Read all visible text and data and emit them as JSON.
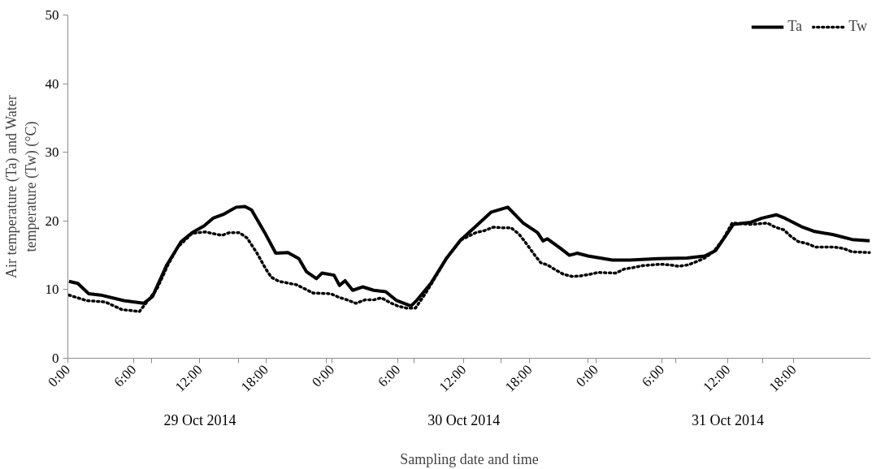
{
  "chart_data": {
    "type": "line",
    "xlabel": "Sampling date and time",
    "ylabel": "Air temperature (Ta) and Water\ntemperature (Tw) (°C)",
    "annotations": [
      "29 Oct 2014",
      "30 Oct 2014",
      "31 Oct 2014"
    ],
    "xlim": [
      "2014-10-29T00:00",
      "2014-11-01T01:00"
    ],
    "xticks": [
      {
        "value": "2014-10-29T00:00",
        "label": "0:00"
      },
      {
        "value": "2014-10-29T06:00",
        "label": "6:00"
      },
      {
        "value": "2014-10-29T12:00",
        "label": "12:00"
      },
      {
        "value": "2014-10-29T18:00",
        "label": "18:00"
      },
      {
        "value": "2014-10-30T00:00",
        "label": "0:00"
      },
      {
        "value": "2014-10-30T06:00",
        "label": "6:00"
      },
      {
        "value": "2014-10-30T12:00",
        "label": "12:00"
      },
      {
        "value": "2014-10-30T18:00",
        "label": "18:00"
      },
      {
        "value": "2014-10-31T00:00",
        "label": "0:00"
      },
      {
        "value": "2014-10-31T06:00",
        "label": "6:00"
      },
      {
        "value": "2014-10-31T12:00",
        "label": "12:00"
      },
      {
        "value": "2014-10-31T18:00",
        "label": "18:00"
      },
      {
        "value": "2014-10-29T07:36",
        "label": null
      },
      {
        "value": "2014-10-29T15:30",
        "label": null
      },
      {
        "value": "2014-10-29T23:30",
        "label": null
      },
      {
        "value": "2014-10-30T07:30",
        "label": null
      },
      {
        "value": "2014-10-30T15:24",
        "label": null
      },
      {
        "value": "2014-10-30T23:18",
        "label": null
      },
      {
        "value": "2014-10-31T07:18",
        "label": null
      },
      {
        "value": "2014-10-31T15:12",
        "label": null
      }
    ],
    "ylim": [
      0,
      50
    ],
    "yticks": [
      0,
      10,
      20,
      30,
      40,
      50
    ],
    "grid": false,
    "legend": "top right",
    "series": [
      {
        "name": "Ta",
        "color": "#000000",
        "line_style": "solid",
        "x": [
          "2014-10-29T00:06",
          "2014-10-29T00:54",
          "2014-10-29T01:54",
          "2014-10-29T03:00",
          "2014-10-29T05:06",
          "2014-10-29T06:54",
          "2014-10-29T07:42",
          "2014-10-29T09:00",
          "2014-10-29T10:18",
          "2014-10-29T11:18",
          "2014-10-29T12:24",
          "2014-10-29T13:12",
          "2014-10-29T14:12",
          "2014-10-29T15:18",
          "2014-10-29T16:06",
          "2014-10-29T16:42",
          "2014-10-29T17:54",
          "2014-10-29T18:54",
          "2014-10-29T20:00",
          "2014-10-29T21:00",
          "2014-10-29T21:42",
          "2014-10-29T22:36",
          "2014-10-29T23:06",
          "2014-10-30T00:12",
          "2014-10-30T00:42",
          "2014-10-30T01:12",
          "2014-10-30T01:54",
          "2014-10-30T02:48",
          "2014-10-30T03:48",
          "2014-10-30T04:54",
          "2014-10-30T05:54",
          "2014-10-30T07:12",
          "2014-10-30T07:42",
          "2014-10-30T09:00",
          "2014-10-30T10:24",
          "2014-10-30T11:42",
          "2014-10-30T13:00",
          "2014-10-30T14:30",
          "2014-10-30T16:00",
          "2014-10-30T17:24",
          "2014-10-30T18:42",
          "2014-10-30T19:12",
          "2014-10-30T19:36",
          "2014-10-30T20:48",
          "2014-10-30T21:36",
          "2014-10-30T22:18",
          "2014-10-30T23:18",
          "2014-10-31T01:30",
          "2014-10-31T03:06",
          "2014-10-31T05:42",
          "2014-10-31T08:18",
          "2014-10-31T09:54",
          "2014-10-31T10:54",
          "2014-10-31T11:42",
          "2014-10-31T12:30",
          "2014-10-31T14:06",
          "2014-10-31T15:06",
          "2014-10-31T16:24",
          "2014-10-31T17:12",
          "2014-10-31T18:48",
          "2014-10-31T19:48",
          "2014-10-31T21:36",
          "2014-10-31T23:18",
          "2014-11-01T00:54"
        ],
        "values": [
          11.2,
          10.9,
          9.4,
          9.2,
          8.4,
          8.0,
          9.0,
          13.6,
          17.0,
          18.3,
          19.3,
          20.4,
          21.0,
          22.0,
          22.1,
          21.6,
          18.3,
          15.3,
          15.4,
          14.5,
          12.6,
          11.6,
          12.4,
          12.1,
          10.6,
          11.3,
          9.9,
          10.4,
          9.9,
          9.7,
          8.4,
          7.6,
          8.4,
          10.9,
          14.5,
          17.2,
          19.1,
          21.3,
          22.0,
          19.7,
          18.3,
          17.1,
          17.4,
          16.0,
          15.0,
          15.3,
          14.9,
          14.3,
          14.3,
          14.5,
          14.6,
          14.9,
          15.7,
          17.6,
          19.5,
          19.8,
          20.4,
          20.9,
          20.4,
          19.1,
          18.5,
          18.0,
          17.3,
          17.1
        ]
      },
      {
        "name": "Tw",
        "color": "#000000",
        "line_style": "dotted",
        "x": [
          "2014-10-29T00:06",
          "2014-10-29T01:42",
          "2014-10-29T03:24",
          "2014-10-29T04:54",
          "2014-10-29T06:30",
          "2014-10-29T07:00",
          "2014-10-29T08:06",
          "2014-10-29T09:06",
          "2014-10-29T10:00",
          "2014-10-29T11:18",
          "2014-10-29T12:30",
          "2014-10-29T14:00",
          "2014-10-29T14:42",
          "2014-10-29T15:36",
          "2014-10-29T16:18",
          "2014-10-29T17:12",
          "2014-10-29T18:00",
          "2014-10-29T18:30",
          "2014-10-29T19:12",
          "2014-10-29T20:48",
          "2014-10-29T22:18",
          "2014-10-29T23:54",
          "2014-10-30T00:36",
          "2014-10-30T01:24",
          "2014-10-30T02:12",
          "2014-10-30T03:00",
          "2014-10-30T03:48",
          "2014-10-30T04:30",
          "2014-10-30T05:18",
          "2014-10-30T06:00",
          "2014-10-30T06:48",
          "2014-10-30T07:36",
          "2014-10-30T08:30",
          "2014-10-30T09:18",
          "2014-10-30T10:24",
          "2014-10-30T11:42",
          "2014-10-30T13:06",
          "2014-10-30T13:54",
          "2014-10-30T14:42",
          "2014-10-30T15:30",
          "2014-10-30T16:18",
          "2014-10-30T17:00",
          "2014-10-30T17:30",
          "2014-10-30T18:00",
          "2014-10-30T18:30",
          "2014-10-30T19:00",
          "2014-10-30T19:36",
          "2014-10-30T20:18",
          "2014-10-30T21:06",
          "2014-10-30T21:54",
          "2014-10-30T22:36",
          "2014-10-30T23:24",
          "2014-10-31T00:12",
          "2014-10-31T01:48",
          "2014-10-31T02:36",
          "2014-10-31T03:24",
          "2014-10-31T04:18",
          "2014-10-31T05:54",
          "2014-10-31T06:42",
          "2014-10-31T07:30",
          "2014-10-31T08:24",
          "2014-10-31T09:12",
          "2014-10-31T09:54",
          "2014-10-31T10:42",
          "2014-10-31T11:36",
          "2014-10-31T12:24",
          "2014-10-31T14:06",
          "2014-10-31T15:36",
          "2014-10-31T16:18",
          "2014-10-31T17:06",
          "2014-10-31T17:42",
          "2014-10-31T18:24",
          "2014-10-31T19:12",
          "2014-10-31T20:00",
          "2014-10-31T21:36",
          "2014-10-31T22:30",
          "2014-10-31T23:18",
          "2014-11-01T00:54"
        ],
        "values": [
          9.2,
          8.4,
          8.2,
          7.1,
          6.8,
          7.8,
          10.1,
          13.6,
          16.2,
          18.2,
          18.4,
          17.9,
          18.3,
          18.3,
          17.5,
          15.3,
          13.0,
          11.8,
          11.2,
          10.7,
          9.5,
          9.4,
          8.9,
          8.5,
          8.0,
          8.5,
          8.5,
          8.8,
          8.1,
          7.6,
          7.3,
          7.3,
          9.4,
          11.5,
          14.5,
          17.2,
          18.3,
          18.6,
          19.1,
          19.0,
          19.0,
          18.1,
          17.1,
          16.0,
          14.9,
          13.9,
          13.6,
          12.9,
          12.2,
          11.9,
          12.0,
          12.2,
          12.5,
          12.4,
          13.0,
          13.2,
          13.5,
          13.7,
          13.6,
          13.4,
          13.6,
          14.1,
          14.6,
          15.5,
          17.4,
          19.7,
          19.5,
          19.7,
          19.1,
          18.7,
          17.8,
          17.0,
          16.7,
          16.2,
          16.2,
          16.0,
          15.5,
          15.4
        ]
      }
    ]
  }
}
